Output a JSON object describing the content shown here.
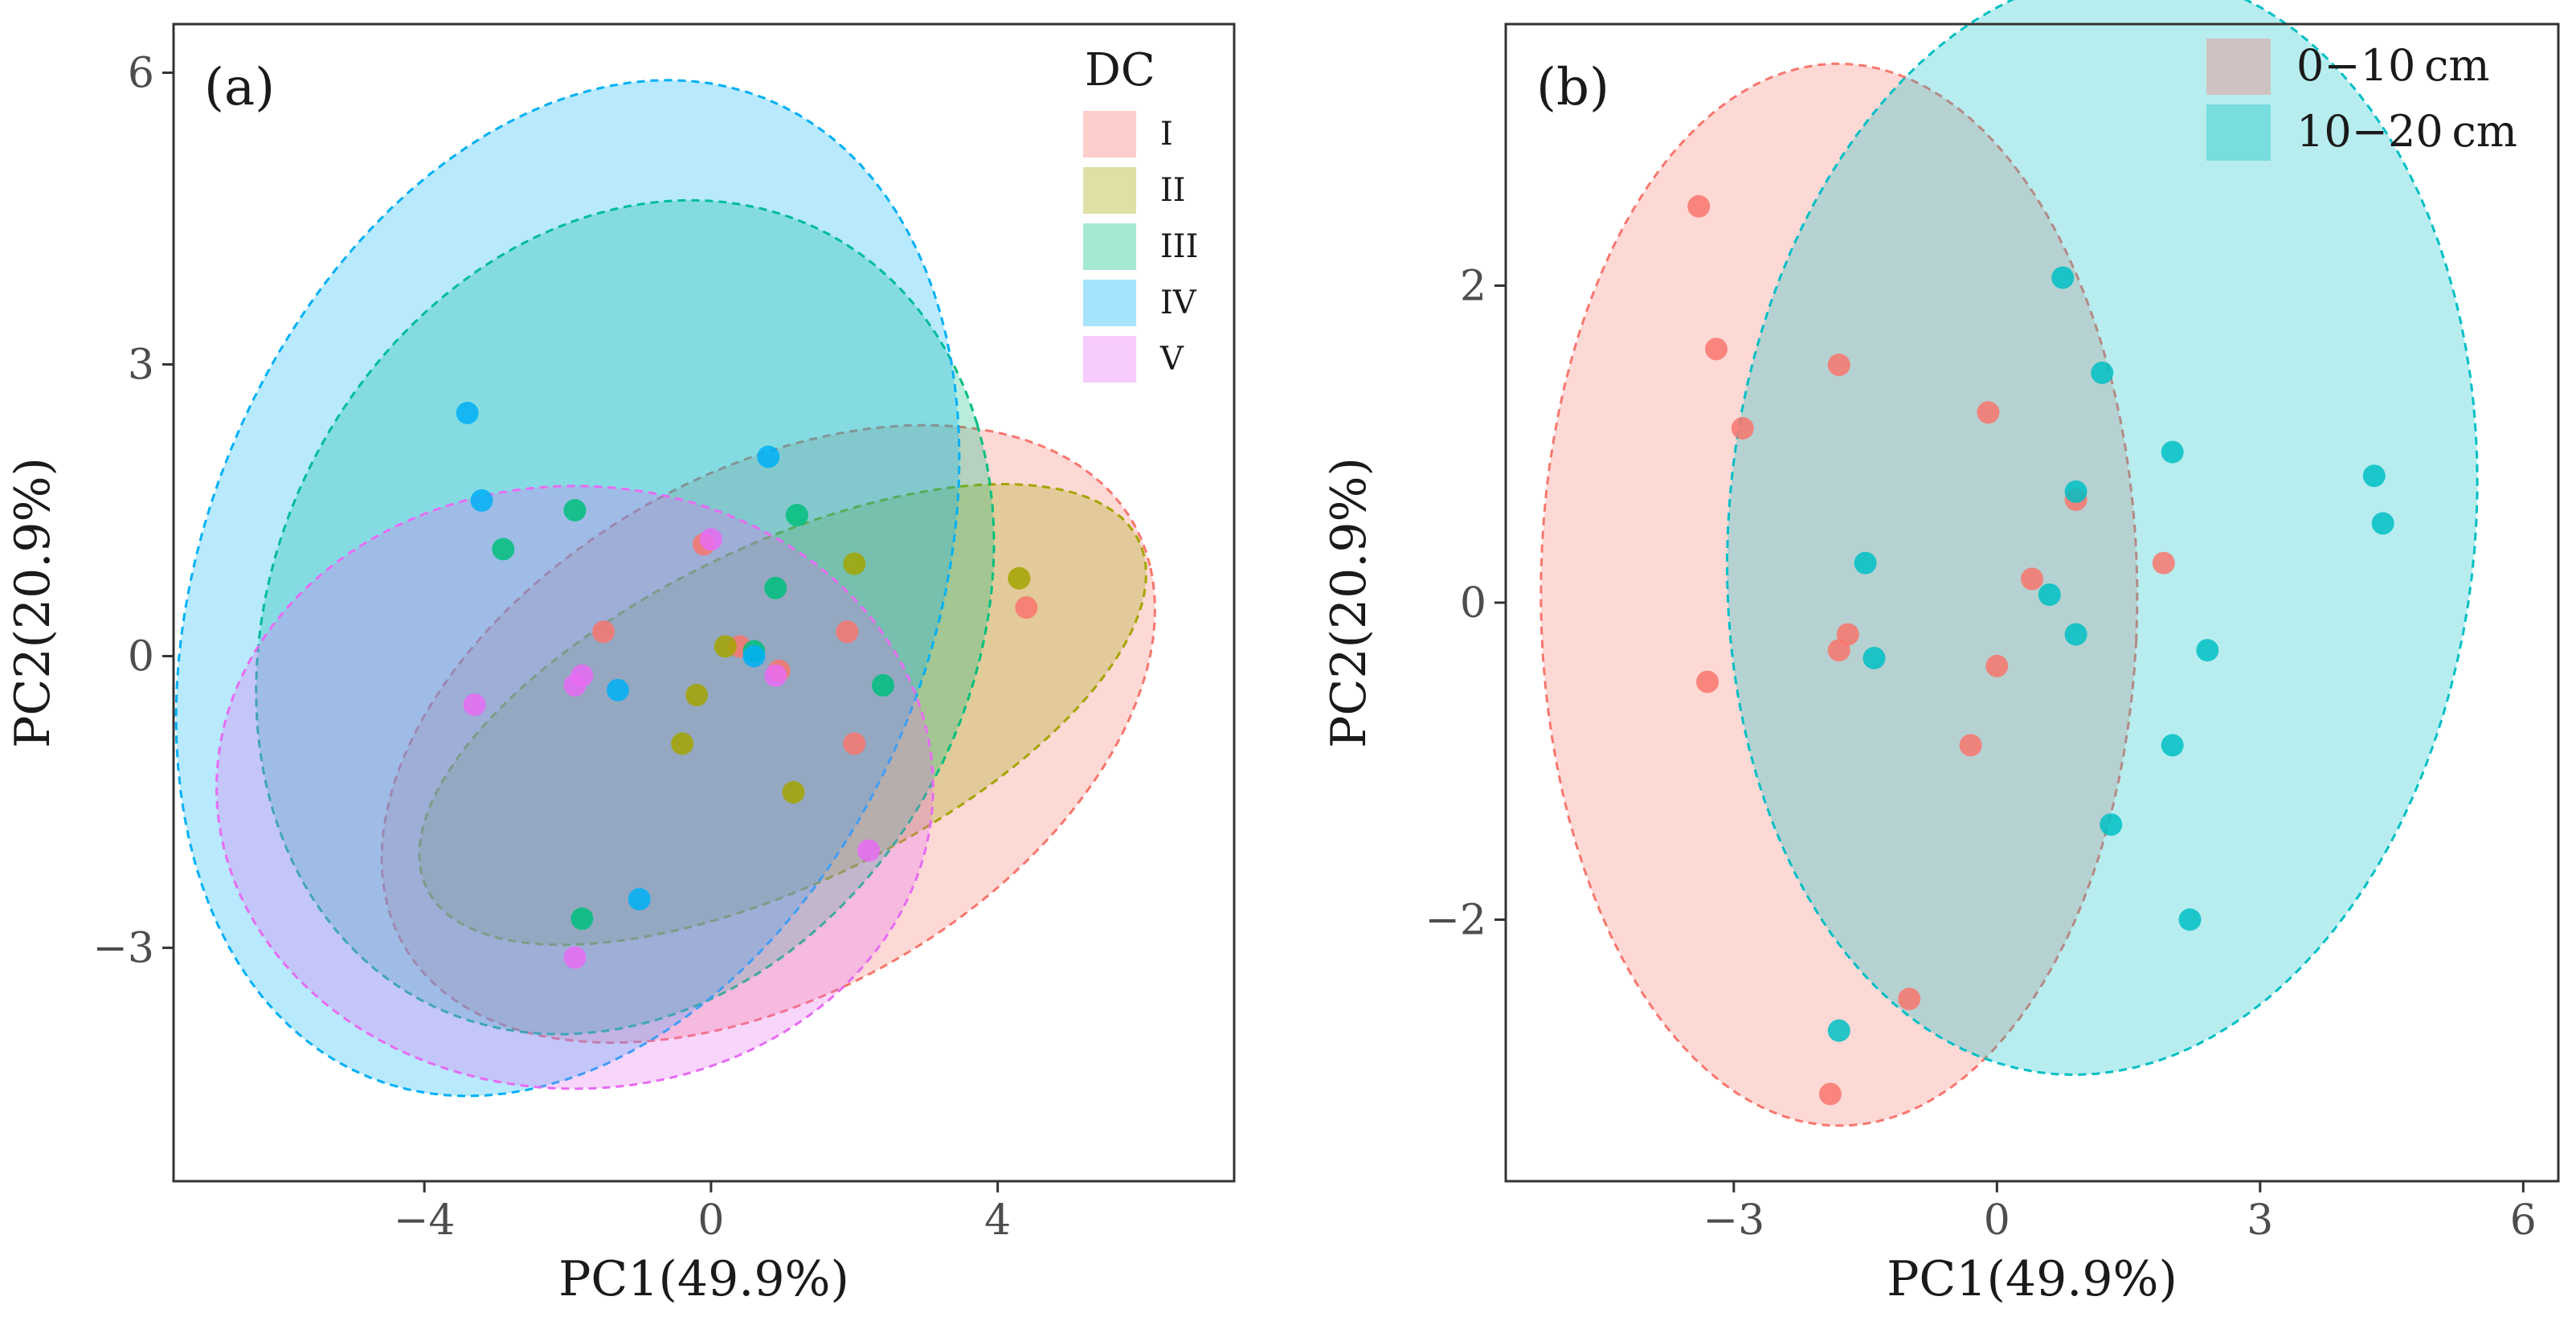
{
  "chart_data": [
    {
      "type": "scatter",
      "panel_label": "(a)",
      "xlabel": "PC1(49.9%)",
      "ylabel": "PC2(20.9%)",
      "xlim": [
        -7.5,
        7.3
      ],
      "ylim": [
        -5.4,
        6.5
      ],
      "xticks": [
        -4,
        0,
        4
      ],
      "xtick_labels": [
        "−4",
        "0",
        "4"
      ],
      "yticks": [
        -3,
        0,
        3,
        6
      ],
      "ytick_labels": [
        "−3",
        "0",
        "3",
        "6"
      ],
      "grid": false,
      "legend": {
        "title": "DC",
        "position": "top-right"
      },
      "series": [
        {
          "name": "I",
          "color": "#f8766d",
          "ellipse": {
            "cx": 0.8,
            "cy": -0.8,
            "rx": 5.6,
            "ry": 2.8,
            "angle": 18
          },
          "points": [
            [
              -0.1,
              1.15
            ],
            [
              0.4,
              0.1
            ],
            [
              0.95,
              -0.15
            ],
            [
              1.9,
              0.25
            ],
            [
              2.0,
              -0.9
            ],
            [
              4.4,
              0.5
            ],
            [
              -1.5,
              0.25
            ]
          ]
        },
        {
          "name": "II",
          "color": "#a3a500",
          "ellipse": {
            "cx": 1.0,
            "cy": -0.6,
            "rx": 5.3,
            "ry": 1.8,
            "angle": 18
          },
          "points": [
            [
              -0.2,
              -0.4
            ],
            [
              -0.4,
              -0.9
            ],
            [
              2.0,
              0.95
            ],
            [
              4.3,
              0.8
            ],
            [
              0.2,
              0.1
            ],
            [
              1.15,
              -1.4
            ]
          ]
        },
        {
          "name": "III",
          "color": "#00bf7d",
          "ellipse": {
            "cx": -1.2,
            "cy": 0.4,
            "rx": 5.3,
            "ry": 4.1,
            "angle": 22
          },
          "points": [
            [
              -2.9,
              1.1
            ],
            [
              -1.9,
              1.5
            ],
            [
              1.2,
              1.45
            ],
            [
              0.9,
              0.7
            ],
            [
              2.4,
              -0.3
            ],
            [
              -1.8,
              -2.7
            ],
            [
              0.6,
              0.05
            ]
          ]
        },
        {
          "name": "IV",
          "color": "#00b0f6",
          "ellipse": {
            "cx": -2.0,
            "cy": 0.7,
            "rx": 6.0,
            "ry": 4.6,
            "angle": 40
          },
          "points": [
            [
              -3.4,
              2.5
            ],
            [
              -3.2,
              1.6
            ],
            [
              -1.0,
              -2.5
            ],
            [
              0.8,
              2.05
            ],
            [
              -1.3,
              -0.35
            ],
            [
              0.6,
              0.0
            ]
          ]
        },
        {
          "name": "V",
          "color": "#e76bf3",
          "ellipse": {
            "cx": -1.9,
            "cy": -1.35,
            "rx": 5.0,
            "ry": 3.1,
            "angle": 0
          },
          "points": [
            [
              -3.3,
              -0.5
            ],
            [
              -1.9,
              -3.1
            ],
            [
              -1.9,
              -0.3
            ],
            [
              0.9,
              -0.2
            ],
            [
              2.2,
              -2.0
            ],
            [
              0.0,
              1.2
            ],
            [
              -1.8,
              -0.2
            ]
          ]
        }
      ]
    },
    {
      "type": "scatter",
      "panel_label": "(b)",
      "xlabel": "PC1(49.9%)",
      "ylabel": "PC2(20.9%)",
      "xlim": [
        -5.6,
        6.4
      ],
      "ylim": [
        -3.65,
        3.65
      ],
      "xticks": [
        -3,
        0,
        3,
        6
      ],
      "xtick_labels": [
        "−3",
        "0",
        "3",
        "6"
      ],
      "yticks": [
        -2,
        0,
        2
      ],
      "ytick_labels": [
        "−2",
        "0",
        "2"
      ],
      "grid": false,
      "legend": {
        "title": "",
        "position": "top-right"
      },
      "series": [
        {
          "name": "0−10 cm",
          "color": "#f8766d",
          "ellipse": {
            "cx": -1.8,
            "cy": 0.05,
            "rx": 3.4,
            "ry": 3.35,
            "angle": -5
          },
          "points": [
            [
              -3.4,
              2.5
            ],
            [
              -3.2,
              1.6
            ],
            [
              -2.9,
              1.1
            ],
            [
              -1.8,
              1.5
            ],
            [
              -0.1,
              1.2
            ],
            [
              0.9,
              0.65
            ],
            [
              0.4,
              0.15
            ],
            [
              1.9,
              0.25
            ],
            [
              -1.7,
              -0.2
            ],
            [
              -1.8,
              -0.3
            ],
            [
              0.0,
              -0.4
            ],
            [
              -3.3,
              -0.5
            ],
            [
              -0.3,
              -0.9
            ],
            [
              -1.0,
              -2.5
            ],
            [
              -1.9,
              -3.1
            ]
          ]
        },
        {
          "name": "10−20 cm",
          "color": "#00bfc4",
          "ellipse": {
            "cx": 1.2,
            "cy": 0.5,
            "rx": 4.3,
            "ry": 3.45,
            "angle": 10
          },
          "points": [
            [
              0.75,
              2.05
            ],
            [
              1.2,
              1.45
            ],
            [
              2.0,
              0.95
            ],
            [
              0.9,
              0.7
            ],
            [
              -1.5,
              0.25
            ],
            [
              0.6,
              0.05
            ],
            [
              0.9,
              -0.2
            ],
            [
              2.4,
              -0.3
            ],
            [
              -1.4,
              -0.35
            ],
            [
              2.0,
              -0.9
            ],
            [
              1.3,
              -1.4
            ],
            [
              2.2,
              -2.0
            ],
            [
              4.3,
              0.8
            ],
            [
              4.4,
              0.5
            ],
            [
              -1.8,
              -2.7
            ]
          ]
        }
      ]
    }
  ]
}
